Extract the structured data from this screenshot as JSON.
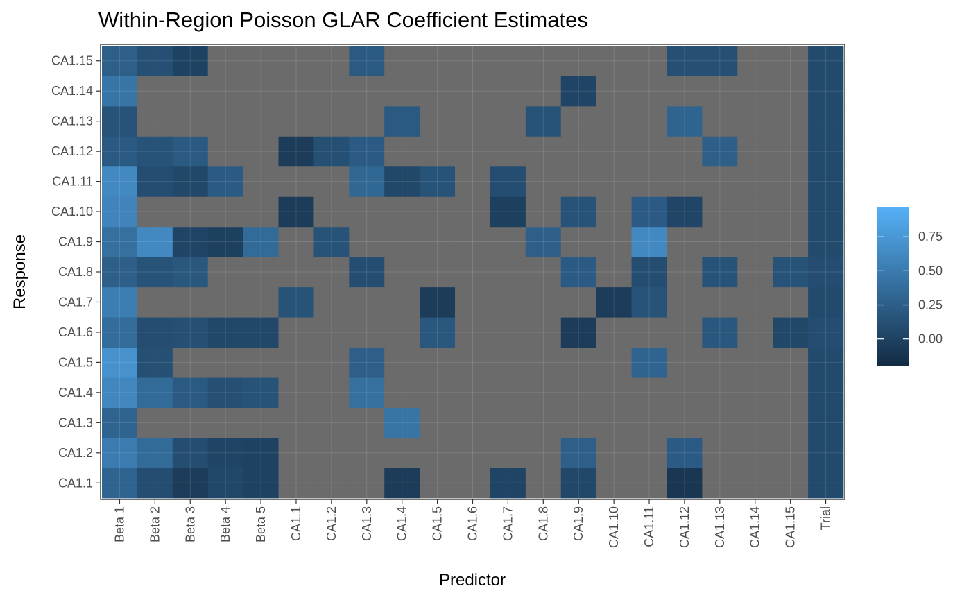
{
  "chart_data": {
    "type": "heatmap",
    "title": "Within-Region Poisson GLAR Coefficient Estimates",
    "xlabel": "Predictor",
    "ylabel": "Response",
    "x_categories": [
      "Beta 1",
      "Beta 2",
      "Beta 3",
      "Beta 4",
      "Beta 5",
      "CA1.1",
      "CA1.2",
      "CA1.3",
      "CA1.4",
      "CA1.5",
      "CA1.6",
      "CA1.7",
      "CA1.8",
      "CA1.9",
      "CA1.10",
      "CA1.11",
      "CA1.12",
      "CA1.13",
      "CA1.14",
      "CA1.15",
      "Trial"
    ],
    "y_categories": [
      "CA1.1",
      "CA1.2",
      "CA1.3",
      "CA1.4",
      "CA1.5",
      "CA1.6",
      "CA1.7",
      "CA1.8",
      "CA1.9",
      "CA1.10",
      "CA1.11",
      "CA1.12",
      "CA1.13",
      "CA1.14",
      "CA1.15"
    ],
    "na_color": "#6b6b6b",
    "color_scale": {
      "low": "#132b43",
      "high": "#56b1f7",
      "limits": [
        -0.2,
        0.97
      ]
    },
    "legend": {
      "breaks": [
        0.75,
        0.5,
        0.25,
        0.0
      ],
      "labels": [
        "0.75",
        "0.50",
        "0.25",
        "0.00"
      ],
      "position": "right"
    },
    "grid": true,
    "rows": [
      {
        "response": "CA1.1",
        "values": [
          0.3,
          0.1,
          -0.05,
          0.05,
          0.0,
          null,
          null,
          null,
          -0.05,
          null,
          null,
          0.02,
          null,
          0.05,
          null,
          null,
          -0.1,
          null,
          null,
          null,
          0.07
        ]
      },
      {
        "response": "CA1.2",
        "values": [
          0.5,
          0.35,
          0.1,
          0.02,
          0.0,
          null,
          null,
          null,
          null,
          null,
          null,
          null,
          null,
          0.25,
          null,
          null,
          0.22,
          null,
          null,
          null,
          0.07
        ]
      },
      {
        "response": "CA1.3",
        "values": [
          0.3,
          null,
          null,
          null,
          null,
          null,
          null,
          null,
          0.45,
          null,
          null,
          null,
          null,
          null,
          null,
          null,
          null,
          null,
          null,
          null,
          0.07
        ]
      },
      {
        "response": "CA1.4",
        "values": [
          0.6,
          0.35,
          0.2,
          0.12,
          0.15,
          null,
          null,
          0.4,
          null,
          null,
          null,
          null,
          null,
          null,
          null,
          null,
          null,
          null,
          null,
          null,
          0.07
        ]
      },
      {
        "response": "CA1.5",
        "values": [
          0.7,
          0.12,
          null,
          null,
          null,
          null,
          null,
          0.25,
          null,
          null,
          null,
          null,
          null,
          null,
          null,
          0.3,
          null,
          null,
          null,
          null,
          0.07
        ]
      },
      {
        "response": "CA1.6",
        "values": [
          0.38,
          0.1,
          0.12,
          0.05,
          0.05,
          null,
          null,
          null,
          null,
          0.18,
          null,
          null,
          null,
          -0.05,
          null,
          null,
          null,
          0.18,
          null,
          0.05,
          0.1
        ]
      },
      {
        "response": "CA1.7",
        "values": [
          0.52,
          null,
          null,
          null,
          null,
          0.15,
          null,
          null,
          null,
          -0.05,
          null,
          null,
          null,
          null,
          -0.05,
          0.15,
          null,
          null,
          null,
          null,
          0.07
        ]
      },
      {
        "response": "CA1.8",
        "values": [
          0.25,
          0.15,
          0.18,
          null,
          null,
          null,
          null,
          0.1,
          null,
          null,
          null,
          null,
          null,
          0.22,
          null,
          0.1,
          null,
          0.15,
          null,
          0.15,
          0.1
        ]
      },
      {
        "response": "CA1.9",
        "values": [
          0.4,
          0.62,
          0.02,
          -0.02,
          0.35,
          null,
          0.15,
          null,
          null,
          null,
          null,
          null,
          0.25,
          null,
          null,
          0.62,
          null,
          null,
          null,
          null,
          0.07
        ]
      },
      {
        "response": "CA1.10",
        "values": [
          0.58,
          null,
          null,
          null,
          null,
          -0.05,
          null,
          null,
          null,
          null,
          null,
          -0.02,
          null,
          0.15,
          null,
          0.22,
          0.03,
          null,
          null,
          null,
          0.07
        ]
      },
      {
        "response": "CA1.11",
        "values": [
          0.62,
          0.1,
          0.05,
          0.22,
          null,
          null,
          null,
          0.32,
          0.05,
          0.15,
          null,
          0.1,
          null,
          null,
          null,
          null,
          null,
          null,
          null,
          null,
          0.07
        ]
      },
      {
        "response": "CA1.12",
        "values": [
          0.2,
          0.15,
          0.2,
          null,
          null,
          -0.05,
          0.12,
          0.22,
          null,
          null,
          null,
          null,
          null,
          null,
          null,
          null,
          null,
          0.25,
          null,
          null,
          0.07
        ]
      },
      {
        "response": "CA1.13",
        "values": [
          0.15,
          null,
          null,
          null,
          null,
          null,
          null,
          null,
          0.2,
          null,
          null,
          null,
          0.15,
          null,
          null,
          null,
          0.3,
          null,
          null,
          null,
          0.07
        ]
      },
      {
        "response": "CA1.14",
        "values": [
          0.45,
          null,
          null,
          null,
          null,
          null,
          null,
          null,
          null,
          null,
          null,
          null,
          null,
          0.02,
          null,
          null,
          null,
          null,
          null,
          null,
          0.07
        ]
      },
      {
        "response": "CA1.15",
        "values": [
          0.25,
          0.12,
          0.0,
          null,
          null,
          null,
          null,
          0.2,
          null,
          null,
          null,
          null,
          null,
          null,
          null,
          null,
          0.12,
          0.12,
          null,
          null,
          0.07
        ]
      }
    ]
  }
}
